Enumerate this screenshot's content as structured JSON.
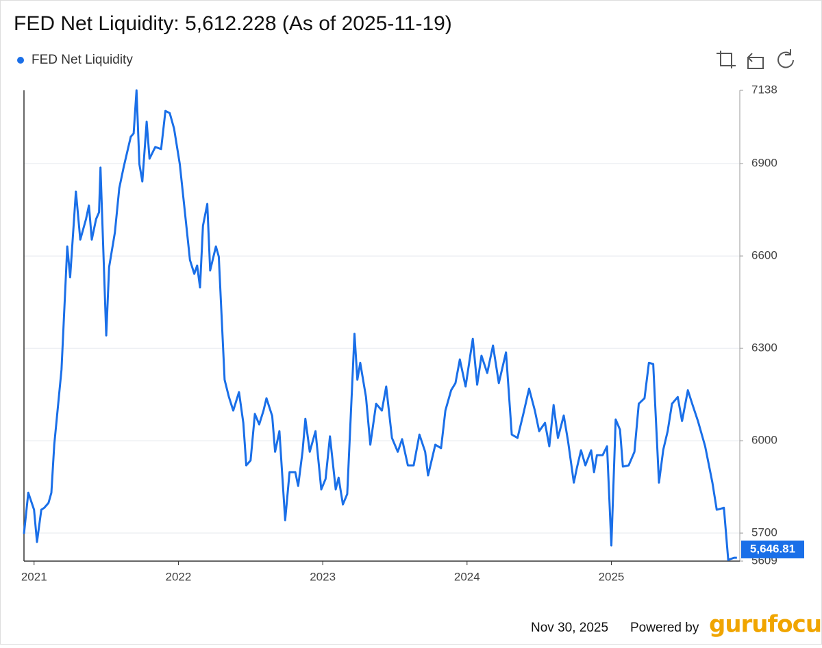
{
  "chart_data": {
    "type": "line",
    "title": "FED Net Liquidity: 5,612.228 (As of 2025-11-19)",
    "series": [
      {
        "name": "FED Net Liquidity",
        "color": "#1a6fe8"
      }
    ],
    "x": [
      2020.93,
      2020.96,
      2021.0,
      2021.02,
      2021.05,
      2021.07,
      2021.1,
      2021.12,
      2021.14,
      2021.19,
      2021.23,
      2021.25,
      2021.29,
      2021.32,
      2021.36,
      2021.38,
      2021.4,
      2021.43,
      2021.45,
      2021.46,
      2021.5,
      2021.52,
      2021.56,
      2021.59,
      2021.62,
      2021.67,
      2021.69,
      2021.71,
      2021.73,
      2021.75,
      2021.78,
      2021.8,
      2021.84,
      2021.88,
      2021.91,
      2021.94,
      2021.97,
      2022.01,
      2022.04,
      2022.08,
      2022.11,
      2022.13,
      2022.15,
      2022.17,
      2022.2,
      2022.22,
      2022.26,
      2022.28,
      2022.32,
      2022.35,
      2022.38,
      2022.42,
      2022.45,
      2022.47,
      2022.5,
      2022.53,
      2022.56,
      2022.59,
      2022.61,
      2022.65,
      2022.67,
      2022.7,
      2022.74,
      2022.77,
      2022.81,
      2022.83,
      2022.86,
      2022.88,
      2022.91,
      2022.95,
      2022.99,
      2023.02,
      2023.05,
      2023.09,
      2023.11,
      2023.14,
      2023.17,
      2023.22,
      2023.24,
      2023.26,
      2023.3,
      2023.33,
      2023.37,
      2023.41,
      2023.44,
      2023.48,
      2023.52,
      2023.55,
      2023.59,
      2023.63,
      2023.67,
      2023.71,
      2023.73,
      2023.78,
      2023.82,
      2023.85,
      2023.89,
      2023.92,
      2023.95,
      2023.99,
      2024.04,
      2024.07,
      2024.1,
      2024.14,
      2024.18,
      2024.22,
      2024.27,
      2024.31,
      2024.35,
      2024.39,
      2024.43,
      2024.47,
      2024.5,
      2024.54,
      2024.57,
      2024.6,
      2024.63,
      2024.67,
      2024.7,
      2024.74,
      2024.76,
      2024.79,
      2024.82,
      2024.86,
      2024.88,
      2024.9,
      2024.94,
      2024.97,
      2025.0,
      2025.03,
      2025.06,
      2025.08,
      2025.12,
      2025.16,
      2025.19,
      2025.23,
      2025.26,
      2025.29,
      2025.33,
      2025.36,
      2025.39,
      2025.42,
      2025.46,
      2025.49,
      2025.53,
      2025.56,
      2025.6,
      2025.65,
      2025.7,
      2025.73,
      2025.78,
      2025.81,
      2025.85,
      2025.87
    ],
    "values": [
      5698,
      5831,
      5776,
      5671,
      5776,
      5782,
      5798,
      5831,
      5987,
      6231,
      6631,
      6531,
      6809,
      6653,
      6720,
      6764,
      6653,
      6720,
      6742,
      6887,
      6342,
      6564,
      6676,
      6820,
      6887,
      6987,
      6998,
      7138,
      6898,
      6842,
      7036,
      6916,
      6954,
      6947,
      7071,
      7064,
      7014,
      6898,
      6764,
      6587,
      6542,
      6569,
      6498,
      6698,
      6769,
      6553,
      6631,
      6598,
      6198,
      6142,
      6098,
      6158,
      6058,
      5920,
      5936,
      6087,
      6053,
      6098,
      6138,
      6080,
      5964,
      6031,
      5742,
      5898,
      5898,
      5853,
      5964,
      6071,
      5964,
      6031,
      5842,
      5876,
      6014,
      5842,
      5880,
      5793,
      5827,
      6347,
      6198,
      6253,
      6142,
      5987,
      6120,
      6098,
      6176,
      6009,
      5964,
      6005,
      5920,
      5920,
      6020,
      5964,
      5887,
      5987,
      5976,
      6098,
      6164,
      6187,
      6264,
      6176,
      6331,
      6182,
      6276,
      6220,
      6309,
      6187,
      6287,
      6020,
      6009,
      6087,
      6169,
      6098,
      6031,
      6058,
      5982,
      6116,
      6009,
      6082,
      5998,
      5864,
      5909,
      5969,
      5920,
      5969,
      5898,
      5953,
      5953,
      5982,
      5660,
      6069,
      6036,
      5916,
      5920,
      5964,
      6120,
      6138,
      6253,
      6249,
      5864,
      5971,
      6031,
      6120,
      6142,
      6064,
      6164,
      6120,
      6064,
      5982,
      5864,
      5776,
      5782,
      5613,
      5620,
      5620
    ],
    "xlim": [
      2020.93,
      2025.89
    ],
    "xticks": [
      2021,
      2022,
      2023,
      2024,
      2025
    ],
    "ylim": [
      5609,
      7138
    ],
    "yticks": [
      5609,
      5700,
      6000,
      6300,
      6600,
      6900,
      7138
    ],
    "grid": true,
    "current_value": 5646.81,
    "current_value_label": "5,646.81",
    "date": "Nov 30, 2025",
    "powered_by": "Powered by",
    "brand": "gurufocus"
  }
}
